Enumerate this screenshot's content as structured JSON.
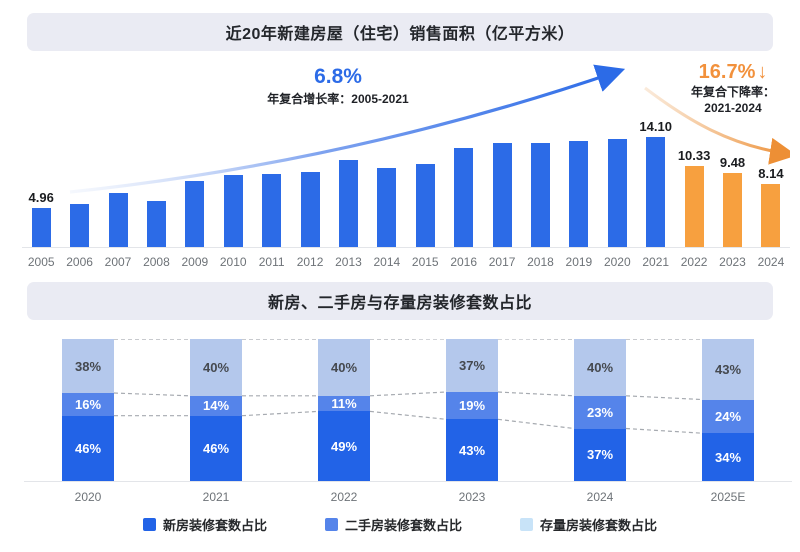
{
  "colors": {
    "banner_bg": "#EAEBF3",
    "blue_bar": "#2C6BE7",
    "orange_bar": "#F7A03F",
    "growth_text": "#2C6BE7",
    "decline_text": "#F2913C",
    "stack_new": "#2263E7",
    "stack_secondhand": "#5584EA",
    "stack_stock": "#B4C8EC",
    "legend_stock_swatch": "#C8E3F8",
    "seg_label_dark": "#45494F",
    "dash_line": "#A6AAB0",
    "axis_text": "#6E7378"
  },
  "chart_data": [
    {
      "type": "bar",
      "title": "近20年新建房屋（住宅）销售面积（亿平方米）",
      "unit": "亿平方米",
      "categories": [
        "2005",
        "2006",
        "2007",
        "2008",
        "2009",
        "2010",
        "2011",
        "2012",
        "2013",
        "2014",
        "2015",
        "2016",
        "2017",
        "2018",
        "2019",
        "2020",
        "2021",
        "2022",
        "2023",
        "2024"
      ],
      "values": [
        4.96,
        5.5,
        6.9,
        5.9,
        8.5,
        9.2,
        9.4,
        9.6,
        11.1,
        10.1,
        10.7,
        12.7,
        13.3,
        13.4,
        13.6,
        13.9,
        14.1,
        10.33,
        9.48,
        8.14
      ],
      "value_labels": {
        "2005": "4.96",
        "2021": "14.10",
        "2022": "10.33",
        "2023": "9.48",
        "2024": "8.14"
      },
      "highlight_years": [
        "2022",
        "2023",
        "2024"
      ],
      "ylim": [
        0,
        16
      ],
      "grid": false,
      "annotations": {
        "growth": {
          "rate": "6.8%",
          "label": "年复合增长率：2005-2021",
          "trend": "up"
        },
        "decline": {
          "rate": "16.7%",
          "arrow": "↓",
          "label_line1": "年复合下降率：",
          "label_line2": "2021-2024",
          "trend": "down"
        }
      }
    },
    {
      "type": "bar",
      "stacked": true,
      "title": "新房、二手房与存量房装修套数占比",
      "unit": "%",
      "categories": [
        "2020",
        "2021",
        "2022",
        "2023",
        "2024",
        "2025E"
      ],
      "series": [
        {
          "name": "新房装修套数占比",
          "values": [
            46,
            46,
            49,
            43,
            37,
            34
          ]
        },
        {
          "name": "二手房装修套数占比",
          "values": [
            16,
            14,
            11,
            19,
            23,
            24
          ]
        },
        {
          "name": "存量房装修套数占比",
          "values": [
            38,
            40,
            40,
            37,
            40,
            43
          ]
        }
      ],
      "legend": [
        {
          "label": "新房装修套数占比",
          "color": "#2263E7"
        },
        {
          "label": "二手房装修套数占比",
          "color": "#5584EA"
        },
        {
          "label": "存量房装修套数占比",
          "color": "#C8E3F8"
        }
      ],
      "legend_position": "bottom"
    }
  ]
}
